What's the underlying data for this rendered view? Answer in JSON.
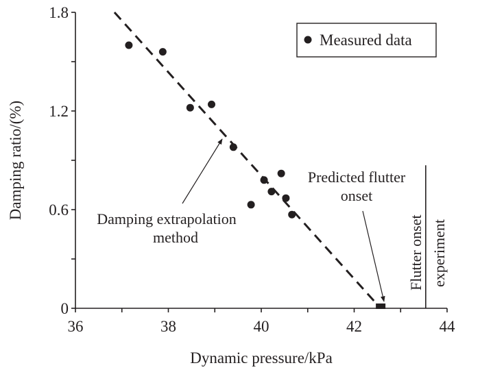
{
  "chart_data": {
    "type": "scatter",
    "xlabel": "Dynamic pressure/kPa",
    "ylabel": "Damping ratio/(%)",
    "xlim": [
      36,
      44
    ],
    "ylim": [
      0,
      1.8
    ],
    "x_ticks": [
      "36",
      "38",
      "40",
      "42",
      "44"
    ],
    "y_ticks": [
      "0",
      "0.6",
      "1.2",
      "1.8"
    ],
    "grid": false,
    "legend": {
      "position": "top-right",
      "entries": [
        "Measured data"
      ]
    },
    "series": [
      {
        "name": "Measured data",
        "marker": "filled-circle",
        "points": [
          [
            37.15,
            1.6
          ],
          [
            37.88,
            1.56
          ],
          [
            38.47,
            1.22
          ],
          [
            38.93,
            1.24
          ],
          [
            39.4,
            0.98
          ],
          [
            40.43,
            0.82
          ],
          [
            40.06,
            0.78
          ],
          [
            40.22,
            0.71
          ],
          [
            40.53,
            0.67
          ],
          [
            39.78,
            0.63
          ],
          [
            40.66,
            0.57
          ]
        ]
      }
    ],
    "extrapolation_line": {
      "style": "dashed",
      "points": [
        [
          36.84,
          1.8
        ],
        [
          42.57,
          0
        ]
      ]
    },
    "predicted_flutter_onset": {
      "x": 42.57,
      "y": 0,
      "marker": "filled-square"
    },
    "experiment_flutter_onset": {
      "x": 43.54,
      "y_top": 0.87,
      "style": "solid-vertical"
    },
    "annotations": {
      "extrapolation_line1": "Damping extrapolation",
      "extrapolation_line2": "method",
      "predicted_line1": "Predicted flutter",
      "predicted_line2": "onset",
      "experiment_line1": "Flutter onset",
      "experiment_line2": "experiment"
    },
    "color": "#231f20"
  }
}
